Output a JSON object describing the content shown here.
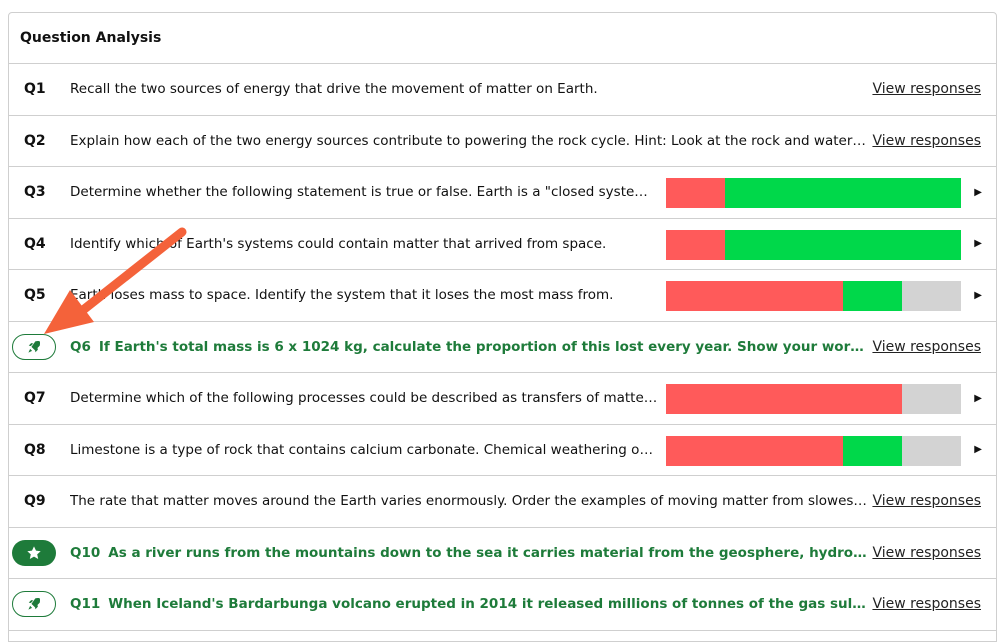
{
  "panel": {
    "title": "Question Analysis"
  },
  "colors": {
    "wrong": "#ff5a5a",
    "correct": "#00d84a",
    "unanswered": "#d3d3d3",
    "flag_green": "#1e7b3a",
    "annotation_arrow": "#f4623a"
  },
  "questions": [
    {
      "num": "Q1",
      "text": "Recall the two sources of energy that drive the movement of matter on Earth.",
      "action": "View responses"
    },
    {
      "num": "Q2",
      "text": "Explain how each of the two energy sources contribute to powering the rock cycle. Hint: Look at the rock and water cycle diagrams.",
      "action": "View responses"
    },
    {
      "num": "Q3",
      "text": "Determine whether the following statement is true or false. Earth is a \"closed system\" for matter.",
      "bar": {
        "wrong": 0.2,
        "correct": 0.8,
        "unanswered": 0
      }
    },
    {
      "num": "Q4",
      "text": "Identify which of Earth's systems could contain matter that arrived from space.",
      "bar": {
        "wrong": 0.2,
        "correct": 0.8,
        "unanswered": 0
      }
    },
    {
      "num": "Q5",
      "text": "Earth loses mass to space. Identify the system that it loses the most mass from.",
      "bar": {
        "wrong": 0.6,
        "correct": 0.2,
        "unanswered": 0.2
      }
    },
    {
      "num": "Q6",
      "text": "If Earth's total mass is 6 x 1024 kg, calculate the proportion of this lost every year. Show your working and explain your answer.",
      "action": "View responses",
      "badge": "rocket-icon",
      "badge_style": "outline"
    },
    {
      "num": "Q7",
      "text": "Determine which of the following processes could be described as transfers of matter between systems.",
      "bar": {
        "wrong": 0.8,
        "correct": 0,
        "unanswered": 0.2
      }
    },
    {
      "num": "Q8",
      "text": "Limestone is a type of rock that contains calcium carbonate. Chemical weathering occurs when rainwater reacts with it.",
      "bar": {
        "wrong": 0.6,
        "correct": 0.2,
        "unanswered": 0.2
      }
    },
    {
      "num": "Q9",
      "text": "The rate that matter moves around the Earth varies enormously. Order the examples of moving matter from slowest to fastest.",
      "action": "View responses"
    },
    {
      "num": "Q10",
      "text": "As a river runs from the mountains down to the sea it carries material from the geosphere, hydrosphere, and biosphere.",
      "action": "View responses",
      "badge": "star-icon",
      "badge_style": "filled"
    },
    {
      "num": "Q11",
      "text": "When Iceland's Bardarbunga volcano erupted in 2014 it released millions of tonnes of the gas sulfur dioxide into the atmosphere.",
      "action": "View responses",
      "badge": "rocket-icon",
      "badge_style": "outline"
    }
  ]
}
